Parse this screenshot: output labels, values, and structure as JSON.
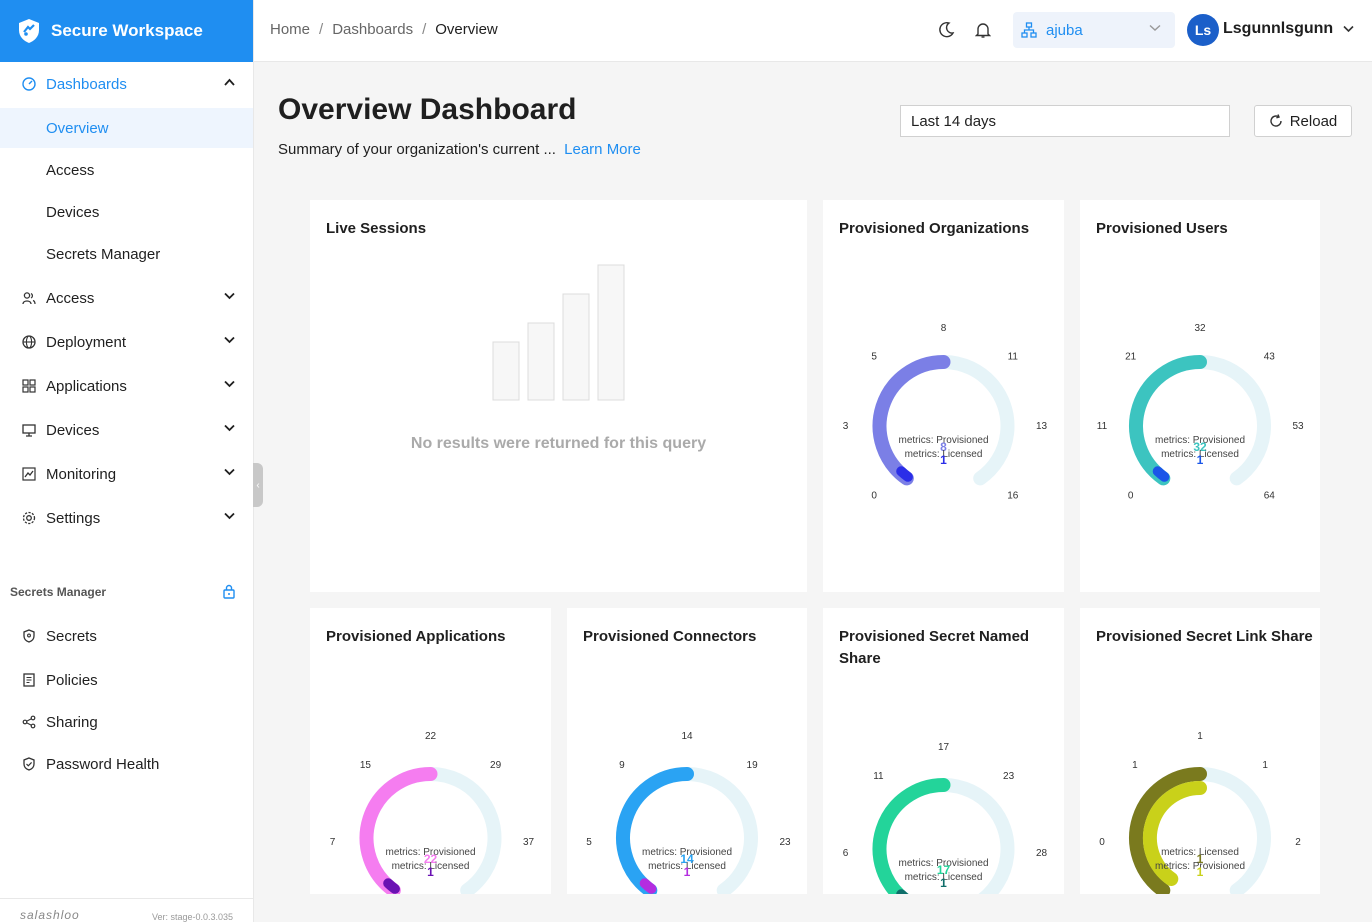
{
  "brand": {
    "name": "Secure Workspace"
  },
  "sidebar": {
    "dashboards": "Dashboards",
    "sub_items": [
      "Overview",
      "Access",
      "Devices",
      "Secrets Manager"
    ],
    "items": [
      "Access",
      "Deployment",
      "Applications",
      "Devices",
      "Monitoring",
      "Settings"
    ],
    "secrets_section": "Secrets Manager",
    "secrets_items": [
      "Secrets",
      "Policies",
      "Sharing",
      "Password Health"
    ],
    "footer_logo": "salashloo",
    "version": "Ver: stage-0.0.3.035"
  },
  "breadcrumb": [
    "Home",
    "Dashboards",
    "Overview"
  ],
  "org": {
    "value": "ajuba"
  },
  "user": {
    "initials": "Ls",
    "name": "Lsgunnlsgunn"
  },
  "page": {
    "title": "Overview Dashboard",
    "subtitle": "Summary of your organization's current ...",
    "learn_more": "Learn More",
    "range": "Last 14 days",
    "reload": "Reload"
  },
  "live_sessions": {
    "title": "Live Sessions",
    "empty": "No results were returned for this query"
  },
  "gauges": [
    {
      "title": "Provisioned Organizations",
      "ticks": [
        "0",
        "3",
        "5",
        "8",
        "11",
        "13",
        "16"
      ],
      "labels": [
        "metrics: Provisioned",
        "metrics: Licensed"
      ],
      "value_text": "8",
      "count_text": "1",
      "fraction": 0.5,
      "colors": [
        "#7b7fe6",
        "#2b2ee8"
      ],
      "value_color": "#7b7fe6",
      "count_color": "#2b2ee8"
    },
    {
      "title": "Provisioned Users",
      "ticks": [
        "0",
        "11",
        "21",
        "32",
        "43",
        "53",
        "64"
      ],
      "labels": [
        "metrics: Provisioned",
        "metrics: Licensed"
      ],
      "value_text": "32",
      "count_text": "1",
      "fraction": 0.5,
      "colors": [
        "#3cc4c0",
        "#1a56e8"
      ],
      "value_color": "#3cc4c0",
      "count_color": "#1a56e8"
    },
    {
      "title": "Provisioned Applications",
      "ticks": [
        "7",
        "15",
        "22",
        "29",
        "37"
      ],
      "labels": [
        "metrics: Provisioned",
        "metrics: Licensed"
      ],
      "value_text": "22",
      "count_text": "1",
      "fraction": 0.5,
      "colors": [
        "#f57df0",
        "#6a12b3"
      ],
      "value_color": "#f57df0",
      "count_color": "#6a12b3"
    },
    {
      "title": "Provisioned Connectors",
      "ticks": [
        "5",
        "9",
        "14",
        "19",
        "23"
      ],
      "labels": [
        "metrics: Provisioned",
        "metrics: Licensed"
      ],
      "value_text": "14",
      "count_text": "1",
      "fraction": 0.5,
      "colors": [
        "#2aa3f3",
        "#b42de0"
      ],
      "value_color": "#2aa3f3",
      "count_color": "#b42de0"
    },
    {
      "title": "Provisioned Secret Named Share",
      "ticks": [
        "6",
        "11",
        "17",
        "23",
        "28"
      ],
      "labels": [
        "metrics: Provisioned",
        "metrics: Licensed"
      ],
      "value_text": "17",
      "count_text": "1",
      "fraction": 0.5,
      "colors": [
        "#23d49a",
        "#0f6e6a"
      ],
      "value_color": "#23d49a",
      "count_color": "#0f6e6a"
    },
    {
      "title": "Provisioned Secret Link Share",
      "ticks": [
        "0",
        "1",
        "1",
        "1",
        "2"
      ],
      "labels": [
        "metrics: Licensed",
        "metrics: Provisioned"
      ],
      "value_text": "1",
      "count_text": "1",
      "fraction": 0.5,
      "colors": [
        "#7a7a1e",
        "#c9d11a"
      ],
      "value_color": "#7a7a1e",
      "count_color": "#c9d11a"
    }
  ]
}
